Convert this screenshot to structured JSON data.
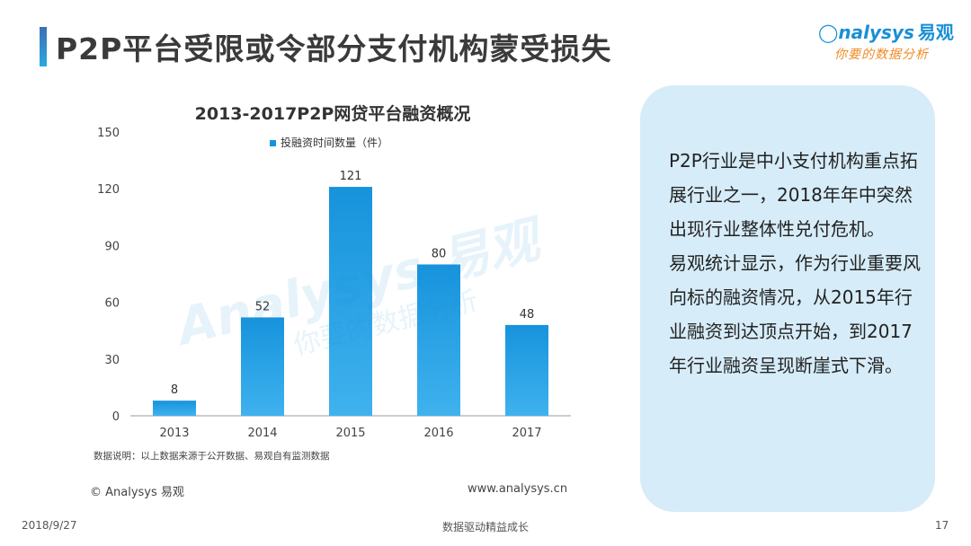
{
  "header": {
    "title": "P2P平台受限或令部分支付机构蒙受损失",
    "logo_text": "nalysys",
    "logo_cn": "易观",
    "logo_tagline": "你要的数据分析",
    "accent_color": "#2ba8e0"
  },
  "chart_data": {
    "type": "bar",
    "title": "2013-2017P2P网贷平台融资概况",
    "categories": [
      "2013",
      "2014",
      "2015",
      "2016",
      "2017"
    ],
    "series": [
      {
        "name": "投融资时间数量（件）",
        "values": [
          8,
          52,
          121,
          80,
          48
        ]
      }
    ],
    "ylim": [
      0,
      150
    ],
    "yticks": [
      0,
      30,
      60,
      90,
      120,
      150
    ],
    "xlabel": "",
    "ylabel": "",
    "legend": "top",
    "grid": false,
    "bar_color": "#1793dc",
    "bar_color_light": "#3fb2ee"
  },
  "chart_note": "数据说明：以上数据来源于公开数据、易观自有监测数据",
  "copyright": "© Analysys 易观",
  "website": "www.analysys.cn",
  "textbox": {
    "paragraphs": [
      "P2P行业是中小支付机构重点拓展行业之一，2018年年中突然出现行业整体性兑付危机。",
      "易观统计显示，作为行业重要风向标的融资情况，从2015年行业融资到达顶点开始，到2017年行业融资呈现断崖式下滑。"
    ]
  },
  "footer": {
    "date": "2018/9/27",
    "center": "数据驱动精益成长",
    "page": "17"
  }
}
